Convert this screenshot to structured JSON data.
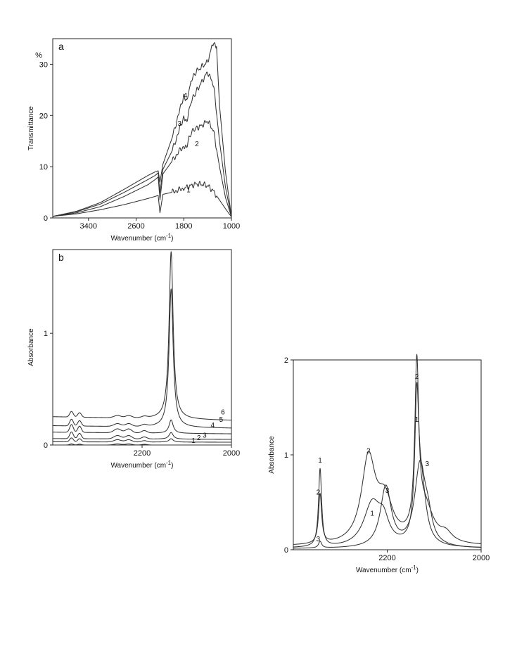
{
  "chart_data": [
    {
      "id": "a",
      "type": "line",
      "panel_label": "a",
      "xlabel": "Wavenumber (cm",
      "xlabel_sup": "-1",
      "xlabel_end": ")",
      "ylabel": "Transmittance",
      "y_unit": "%",
      "xlim": [
        4000,
        1000
      ],
      "ylim": [
        0,
        35
      ],
      "x_ticks": [
        3400,
        2600,
        1800,
        1000
      ],
      "x_tick_labels": [
        "3400",
        "2600",
        "1800",
        "1000"
      ],
      "y_ticks": [
        0,
        10,
        20,
        30
      ],
      "y_tick_labels": [
        "0",
        "10",
        "20",
        "30"
      ],
      "grid": false,
      "series": [
        {
          "label": "1",
          "label_at": [
            1720,
            5.0
          ],
          "x": [
            4000,
            3600,
            3200,
            2800,
            2400,
            2280,
            2230,
            2200,
            2150,
            2000,
            1800,
            1700,
            1600,
            1500,
            1400,
            1300,
            1200,
            1100,
            1000
          ],
          "y": [
            0.3,
            0.8,
            1.6,
            2.6,
            3.8,
            4.2,
            4.4,
            1.0,
            4.6,
            5.0,
            5.8,
            6.2,
            6.6,
            6.6,
            6.3,
            5.2,
            3.5,
            1.8,
            0.2
          ]
        },
        {
          "label": "2",
          "label_at": [
            1580,
            14.0
          ],
          "x": [
            4000,
            3600,
            3200,
            2800,
            2400,
            2280,
            2230,
            2200,
            2150,
            2000,
            1880,
            1800,
            1750,
            1680,
            1600,
            1500,
            1400,
            1300,
            1200,
            1100,
            1000
          ],
          "y": [
            0.3,
            1.0,
            2.2,
            4.2,
            6.5,
            7.5,
            8.0,
            3.5,
            8.6,
            11.0,
            13.0,
            14.0,
            14.2,
            16.5,
            17.5,
            18.0,
            19.0,
            17.0,
            10.0,
            4.0,
            0.2
          ]
        },
        {
          "label": "3",
          "label_at": [
            1870,
            18.0
          ],
          "x": [
            4000,
            3600,
            3200,
            2800,
            2400,
            2280,
            2230,
            2200,
            2150,
            2000,
            1880,
            1800,
            1750,
            1680,
            1600,
            1500,
            1400,
            1300,
            1200,
            1100,
            1000
          ],
          "y": [
            0.3,
            1.2,
            2.7,
            5.0,
            7.5,
            8.3,
            8.8,
            5.0,
            9.5,
            13.0,
            17.0,
            19.8,
            19.0,
            22.5,
            24.5,
            26.5,
            28.5,
            26.0,
            15.0,
            6.0,
            0.2
          ]
        },
        {
          "label": "4",
          "label_at": [
            1775,
            23.5
          ],
          "x": [
            4000,
            3600,
            3200,
            2800,
            2400,
            2280,
            2230,
            2200,
            2150,
            2000,
            1880,
            1800,
            1750,
            1680,
            1600,
            1500,
            1400,
            1300,
            1250,
            1200,
            1100,
            1000
          ],
          "y": [
            0.3,
            1.3,
            3.0,
            5.6,
            8.3,
            9.0,
            9.2,
            7.0,
            10.5,
            15.5,
            20.5,
            24.0,
            23.0,
            26.5,
            28.5,
            29.5,
            30.5,
            34.5,
            33.5,
            22.0,
            9.0,
            0.2
          ]
        }
      ]
    },
    {
      "id": "b",
      "type": "line",
      "panel_label": "b",
      "xlabel": "Wavenumber (cm",
      "xlabel_sup": "-1",
      "xlabel_end": ")",
      "ylabel": "Absorbance",
      "xlim": [
        2400,
        2000
      ],
      "ylim": [
        0,
        1.75
      ],
      "x_ticks": [
        2200,
        2000
      ],
      "x_tick_labels": [
        "2200",
        "2000"
      ],
      "y_ticks": [
        0,
        1
      ],
      "y_tick_labels": [
        "0",
        "1"
      ],
      "grid": false,
      "peak_center": 2135,
      "series": [
        {
          "label": "1",
          "label_at": [
            2085,
            0.005
          ],
          "baseline": 0.0,
          "co2_peak": 0.01,
          "small_bumps": 0.01,
          "main_peak": 0.0
        },
        {
          "label": "2",
          "label_at": [
            2073,
            0.03
          ],
          "baseline": 0.025,
          "co2_peak": 0.035,
          "small_bumps": 0.02,
          "main_peak": 0.03
        },
        {
          "label": "3",
          "label_at": [
            2060,
            0.055
          ],
          "baseline": 0.05,
          "co2_peak": 0.06,
          "small_bumps": 0.03,
          "main_peak": 0.06
        },
        {
          "label": "4",
          "label_at": [
            2042,
            0.145
          ],
          "baseline": 0.1,
          "co2_peak": 0.07,
          "small_bumps": 0.035,
          "main_peak": 0.12
        },
        {
          "label": "5",
          "label_at": [
            2023,
            0.195
          ],
          "baseline": 0.15,
          "co2_peak": 0.06,
          "small_bumps": 0.025,
          "main_peak": 1.24
        },
        {
          "label": "6",
          "label_at": [
            2019,
            0.26
          ],
          "baseline": 0.22,
          "co2_peak": 0.05,
          "small_bumps": 0.02,
          "main_peak": 1.5
        }
      ]
    },
    {
      "id": "c",
      "type": "line",
      "xlabel": "Wavenumber (cm",
      "xlabel_sup": "-1",
      "xlabel_end": ")",
      "ylabel": "Absorbance",
      "xlim": [
        2400,
        2000
      ],
      "ylim": [
        0,
        2
      ],
      "x_ticks": [
        2200,
        2000
      ],
      "x_tick_labels": [
        "2200",
        "2000"
      ],
      "y_ticks": [
        0,
        1,
        2
      ],
      "y_tick_labels": [
        "0",
        "1",
        "2"
      ],
      "grid": false,
      "series": [
        {
          "label": "1",
          "label_positions": [
            [
              2343,
              0.92
            ],
            [
              2232,
              0.36
            ],
            [
              2137,
              1.35
            ]
          ],
          "peaks": [
            [
              2343,
              0.82,
              4
            ],
            [
              2232,
              0.45,
              22
            ],
            [
              2208,
              0.22,
              14
            ],
            [
              2137,
              1.36,
              5
            ],
            [
              2127,
              0.6,
              12
            ]
          ],
          "baseline": 0.015
        },
        {
          "label": "2",
          "label_positions": [
            [
              2347,
              0.58
            ],
            [
              2240,
              1.02
            ],
            [
              2137,
              1.8
            ]
          ],
          "peaks": [
            [
              2343,
              0.52,
              4
            ],
            [
              2240,
              0.88,
              18
            ],
            [
              2205,
              0.42,
              20
            ],
            [
              2137,
              1.72,
              5
            ],
            [
              2120,
              0.38,
              22
            ],
            [
              2075,
              0.09,
              16
            ]
          ],
          "baseline": 0.035
        },
        {
          "label": "3",
          "label_positions": [
            [
              2347,
              0.09
            ],
            [
              2200,
              0.6
            ],
            [
              2115,
              0.88
            ]
          ],
          "peaks": [
            [
              2343,
              0.07,
              4
            ],
            [
              2203,
              0.64,
              14
            ],
            [
              2130,
              0.86,
              14
            ],
            [
              2113,
              0.2,
              10
            ]
          ],
          "baseline": 0.01
        }
      ]
    }
  ]
}
